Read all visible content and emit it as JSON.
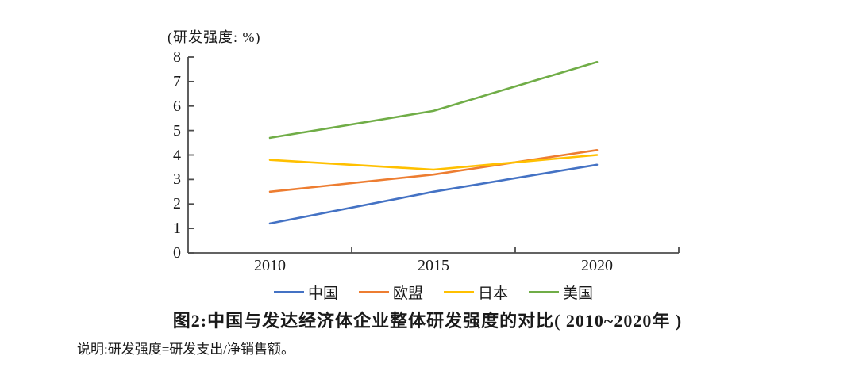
{
  "chart_data": {
    "type": "line",
    "title": "图2:中国与发达经济体企业整体研发强度的对比( 2010~2020年 )",
    "unit": "(研发强度: %)",
    "note": "说明:研发强度=研发支出/净销售额。",
    "categories": [
      "2010",
      "2015",
      "2020"
    ],
    "series": [
      {
        "name": "中国",
        "key": "china",
        "color": "#4472C4",
        "values": [
          1.2,
          2.5,
          3.6
        ]
      },
      {
        "name": "欧盟",
        "key": "eu",
        "color": "#ED7D31",
        "values": [
          2.5,
          3.2,
          4.2
        ]
      },
      {
        "name": "日本",
        "key": "japan",
        "color": "#FFC000",
        "values": [
          3.8,
          3.4,
          4.0
        ]
      },
      {
        "name": "美国",
        "key": "usa",
        "color": "#70AD47",
        "values": [
          4.7,
          5.8,
          7.8
        ]
      }
    ],
    "ylim": [
      0,
      8
    ],
    "yticks": [
      0,
      1,
      2,
      3,
      4,
      5,
      6,
      7,
      8
    ],
    "grid": false,
    "legend_position": "bottom",
    "axis_color": "#4d4d4d",
    "text_color": "#1a1a1a"
  }
}
